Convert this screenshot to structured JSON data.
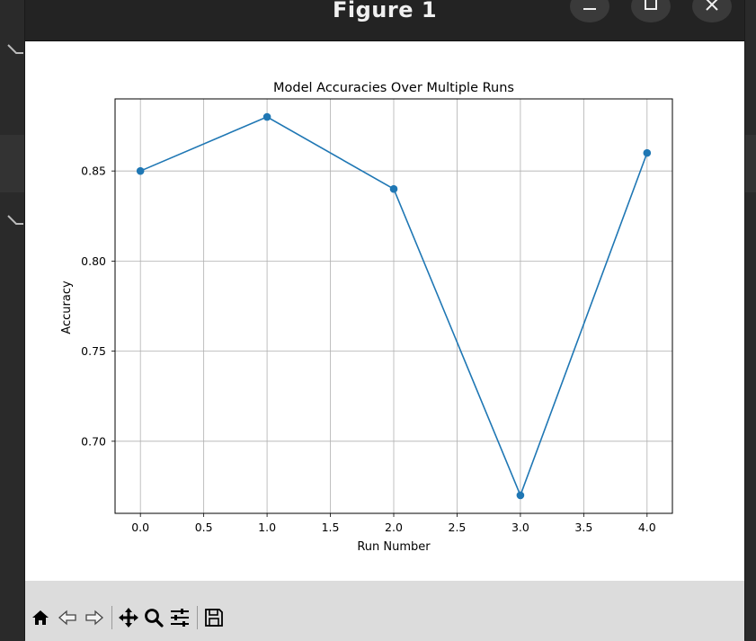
{
  "window": {
    "title": "Figure 1"
  },
  "icons": {
    "minimize": "minimize-icon",
    "maximize": "maximize-icon",
    "close": "close-icon",
    "home": "home-icon",
    "back": "back-arrow-icon",
    "forward": "forward-arrow-icon",
    "pan": "pan-icon",
    "zoom": "zoom-icon",
    "configure": "configure-subplots-icon",
    "save": "save-icon"
  },
  "chart_data": {
    "type": "line",
    "title": "Model Accuracies Over Multiple Runs",
    "xlabel": "Run Number",
    "ylabel": "Accuracy",
    "x": [
      0,
      1,
      2,
      3,
      4
    ],
    "series": [
      {
        "values": [
          0.85,
          0.88,
          0.84,
          0.67,
          0.86
        ],
        "color": "#1f77b4",
        "marker": "circle"
      }
    ],
    "xlim": [
      -0.2,
      4.2
    ],
    "ylim": [
      0.66,
      0.89
    ],
    "xticks": [
      "0.0",
      "0.5",
      "1.0",
      "1.5",
      "2.0",
      "2.5",
      "3.0",
      "3.5",
      "4.0"
    ],
    "yticks": [
      "0.70",
      "0.75",
      "0.80",
      "0.85"
    ],
    "grid": true
  }
}
